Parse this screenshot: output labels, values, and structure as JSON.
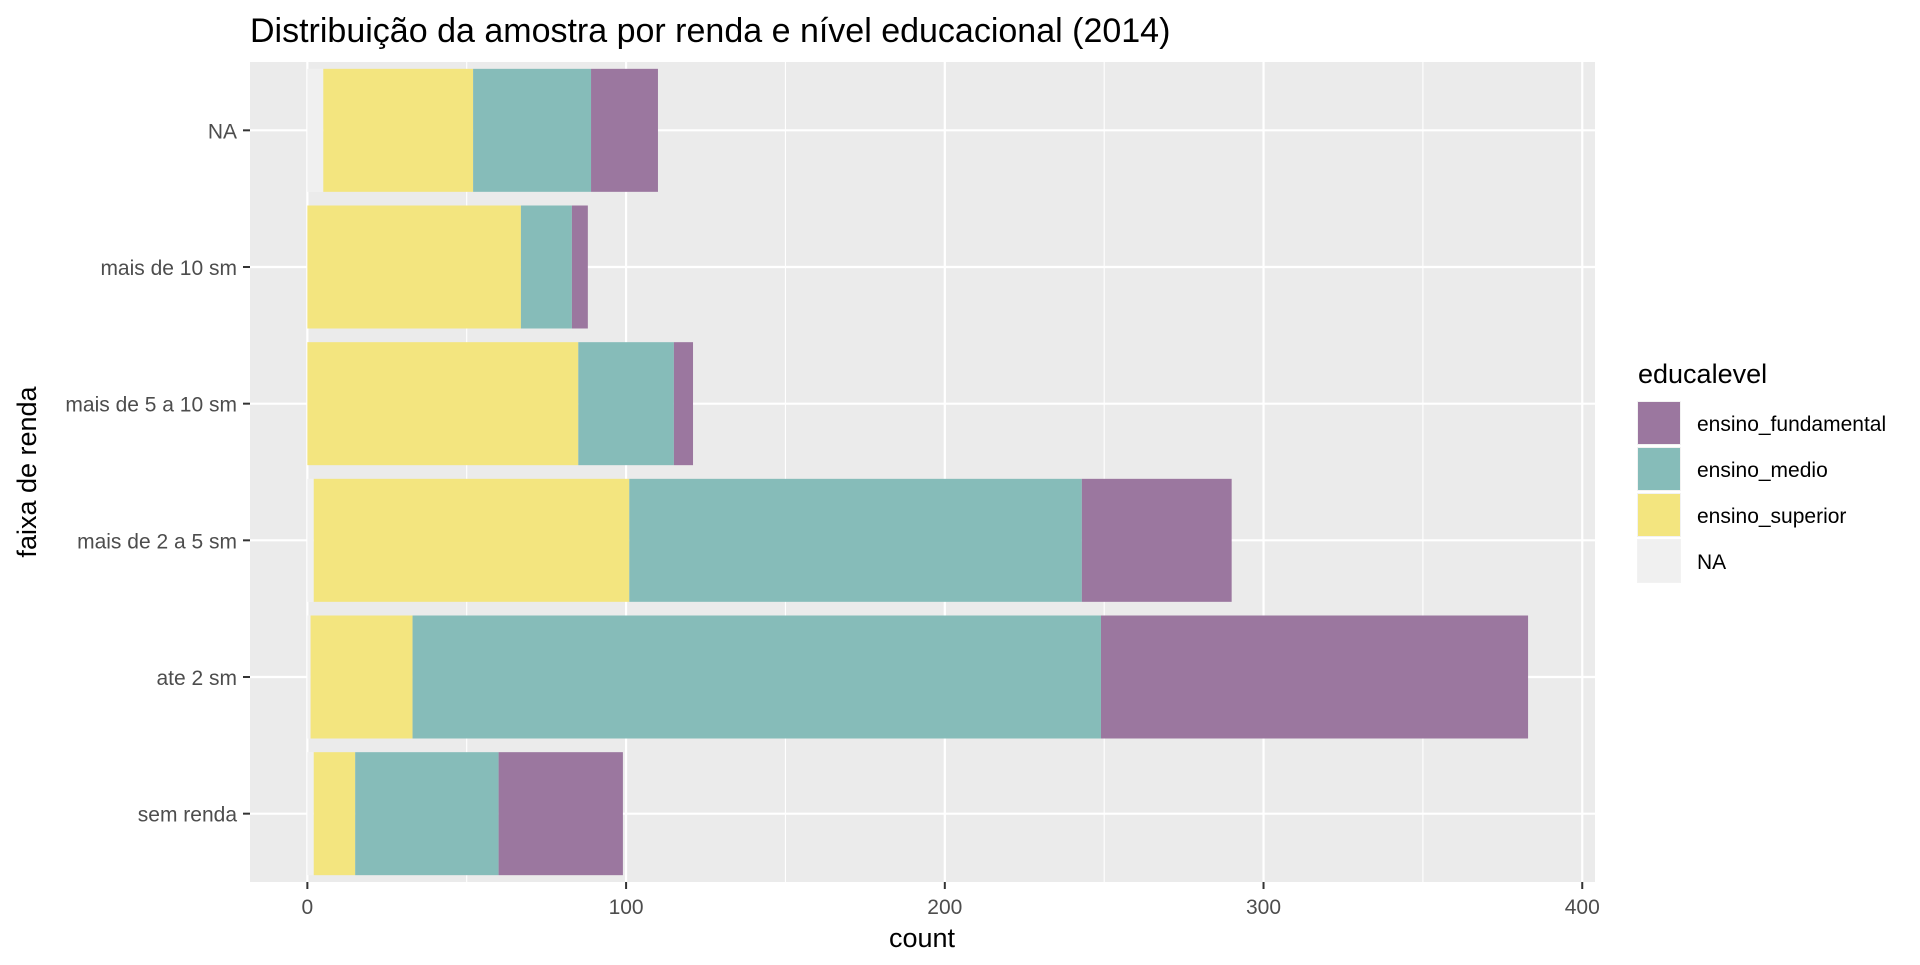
{
  "chart_data": {
    "type": "bar",
    "orientation": "horizontal",
    "stacked": true,
    "title": "Distribuição da amostra por renda e nível educacional (2014)",
    "xlabel": "count",
    "ylabel": "faixa de renda",
    "xlim": [
      -18,
      404
    ],
    "xticks": [
      0,
      100,
      200,
      300,
      400
    ],
    "categories": [
      "NA",
      "mais de 10 sm",
      "mais de 5 a 10 sm",
      "mais de 2 a 5 sm",
      "ate 2 sm",
      "sem renda"
    ],
    "grid": true,
    "legend": {
      "title": "educalevel",
      "position": "right",
      "entries": [
        "ensino_fundamental",
        "ensino_medio",
        "ensino_superior",
        "NA"
      ]
    },
    "series": [
      {
        "name": "NA",
        "color": "#F0F0F0",
        "values": [
          5,
          0,
          0,
          2,
          1,
          2
        ]
      },
      {
        "name": "ensino_superior",
        "color": "#F3E57F",
        "values": [
          47,
          67,
          85,
          99,
          32,
          13
        ]
      },
      {
        "name": "ensino_medio",
        "color": "#86BCB9",
        "values": [
          37,
          16,
          30,
          142,
          216,
          45
        ]
      },
      {
        "name": "ensino_fundamental",
        "color": "#9B779F",
        "values": [
          21,
          5,
          6,
          47,
          134,
          39
        ]
      }
    ]
  }
}
